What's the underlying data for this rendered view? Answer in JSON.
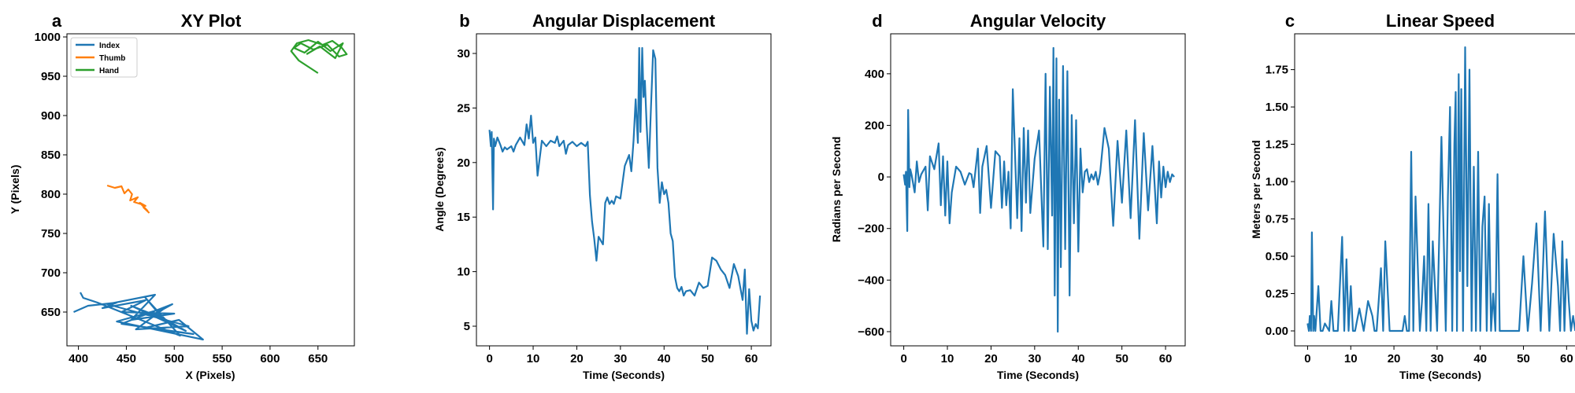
{
  "figure": {
    "panels": [
      {
        "letter": "a",
        "title": "XY Plot",
        "xlabel": "X (Pixels)",
        "ylabel": "Y (Pixels)",
        "xlim": [
          388,
          688
        ],
        "ylim": [
          607,
          1004
        ],
        "xticks": [
          400,
          450,
          500,
          550,
          600,
          650
        ],
        "yticks": [
          650,
          700,
          750,
          800,
          850,
          900,
          950,
          1000
        ],
        "tick_labels_x": [
          "400",
          "450",
          "500",
          "550",
          "600",
          "650"
        ],
        "tick_labels_y": [
          "650",
          "700",
          "750",
          "800",
          "850",
          "900",
          "950",
          "1000"
        ],
        "legend": {
          "placement": "upper-left",
          "entries": [
            "Index",
            "Thumb",
            "Hand"
          ]
        }
      },
      {
        "letter": "b",
        "title": "Angular Displacement",
        "xlabel": "Time (Seconds)",
        "ylabel": "Angle (Degrees)",
        "xlim": [
          -3,
          64.5
        ],
        "ylim": [
          3.2,
          31.8
        ],
        "xticks": [
          0,
          10,
          20,
          30,
          40,
          50,
          60
        ],
        "yticks": [
          5,
          10,
          15,
          20,
          25,
          30
        ],
        "tick_labels_x": [
          "0",
          "10",
          "20",
          "30",
          "40",
          "50",
          "60"
        ],
        "tick_labels_y": [
          "5",
          "10",
          "15",
          "20",
          "25",
          "30"
        ]
      },
      {
        "letter": "d",
        "title": "Angular Velocity",
        "xlabel": "Time (Seconds)",
        "ylabel": "Radians per Second",
        "xlim": [
          -3,
          64.5
        ],
        "ylim": [
          -655,
          555
        ],
        "xticks": [
          0,
          10,
          20,
          30,
          40,
          50,
          60
        ],
        "yticks": [
          -600,
          -400,
          -200,
          0,
          200,
          400
        ],
        "tick_labels_x": [
          "0",
          "10",
          "20",
          "30",
          "40",
          "50",
          "60"
        ],
        "tick_labels_y": [
          "−600",
          "−400",
          "−200",
          "0",
          "200",
          "400"
        ]
      },
      {
        "letter": "c",
        "title": "Linear Speed",
        "xlabel": "Time (Seconds)",
        "ylabel": "Meters per Second",
        "xlim": [
          -3,
          64.5
        ],
        "ylim": [
          -0.1,
          1.99
        ],
        "xticks": [
          0,
          10,
          20,
          30,
          40,
          50,
          60
        ],
        "yticks": [
          0.0,
          0.25,
          0.5,
          0.75,
          1.0,
          1.25,
          1.5,
          1.75
        ],
        "tick_labels_x": [
          "0",
          "10",
          "20",
          "30",
          "40",
          "50",
          "60"
        ],
        "tick_labels_y": [
          "0.00",
          "0.25",
          "0.50",
          "0.75",
          "1.00",
          "1.25",
          "1.50",
          "1.75"
        ]
      }
    ]
  },
  "chart_data": [
    {
      "type": "line",
      "panel": "a",
      "title": "XY Plot",
      "xlabel": "X (Pixels)",
      "ylabel": "Y (Pixels)",
      "xlim": [
        388,
        688
      ],
      "ylim": [
        607,
        1004
      ],
      "grid": false,
      "legend": "top-left",
      "series": [
        {
          "name": "Index",
          "color": "#1f77b4",
          "x": [
            395,
            410,
            440,
            425,
            470,
            445,
            500,
            455,
            480,
            430,
            515,
            460,
            490,
            440,
            530,
            505,
            470,
            520,
            445,
            498,
            480,
            512,
            455,
            488,
            470,
            506,
            420,
            405,
            402
          ],
          "y": [
            650,
            658,
            662,
            655,
            665,
            650,
            648,
            640,
            672,
            660,
            632,
            628,
            655,
            638,
            615,
            640,
            630,
            622,
            635,
            660,
            648,
            626,
            658,
            642,
            668,
            620,
            662,
            668,
            675
          ]
        },
        {
          "name": "Thumb",
          "color": "#ff7f0e",
          "x": [
            430,
            438,
            445,
            448,
            452,
            456,
            454,
            462,
            458,
            466,
            470,
            464,
            472,
            468,
            474
          ],
          "y": [
            811,
            808,
            810,
            801,
            806,
            800,
            792,
            796,
            790,
            787,
            785,
            789,
            779,
            783,
            776
          ]
        },
        {
          "name": "Hand",
          "color": "#2ca02c",
          "x": [
            650,
            640,
            630,
            622,
            628,
            640,
            655,
            665,
            675,
            680,
            672,
            660,
            645,
            632,
            625,
            636,
            650,
            663,
            676,
            668,
            652,
            638
          ],
          "y": [
            954,
            962,
            970,
            982,
            992,
            996,
            990,
            995,
            986,
            978,
            975,
            990,
            984,
            992,
            986,
            980,
            994,
            982,
            992,
            973,
            988,
            978
          ]
        }
      ]
    },
    {
      "type": "line",
      "panel": "b",
      "title": "Angular Displacement",
      "xlabel": "Time (Seconds)",
      "ylabel": "Angle (Degrees)",
      "xlim": [
        -3,
        64.5
      ],
      "ylim": [
        3.2,
        31.8
      ],
      "grid": false,
      "series": [
        {
          "color": "#1f77b4",
          "x": [
            0,
            0.3,
            0.5,
            0.8,
            1.0,
            1.3,
            1.5,
            1.8,
            2.5,
            3,
            3.5,
            4,
            5,
            5.5,
            6,
            7,
            8,
            8.5,
            9,
            9.5,
            10,
            10.5,
            11,
            12,
            13,
            14,
            15,
            15.5,
            16,
            17,
            17.5,
            18,
            19,
            20,
            21,
            22,
            22.5,
            23,
            23.5,
            24,
            24.5,
            25,
            26,
            26.5,
            27,
            27.5,
            28,
            28.5,
            29,
            30,
            31,
            32,
            32.5,
            33,
            33.5,
            34,
            34.3,
            34.6,
            35,
            35.3,
            35.6,
            36,
            36.5,
            37,
            37.5,
            38,
            38.5,
            39,
            39.5,
            40,
            40.5,
            41,
            41.5,
            42,
            42.5,
            43,
            43.5,
            44,
            44.5,
            45,
            46,
            47,
            48,
            49,
            50,
            51,
            52,
            53,
            54,
            55,
            56,
            57,
            58,
            58.5,
            59,
            59.5,
            60,
            60.5,
            61,
            61.5,
            62
          ],
          "y": [
            23,
            21.5,
            22.8,
            15.7,
            22.2,
            21.5,
            21.8,
            22.3,
            21.6,
            21,
            21.4,
            21.2,
            21.5,
            21,
            21.6,
            22.3,
            21.6,
            23.5,
            22.2,
            24.3,
            21.8,
            22.3,
            18.8,
            22,
            21.5,
            22,
            21.8,
            22.4,
            21.5,
            22,
            20.8,
            21.6,
            21.9,
            21.5,
            21.8,
            21.5,
            21.9,
            17,
            14.6,
            13,
            11,
            13.2,
            12.5,
            16.3,
            16.8,
            16.2,
            16.5,
            16.2,
            16.9,
            16.7,
            19.7,
            20.7,
            19.2,
            22,
            25.8,
            21.8,
            30.5,
            22.8,
            30.5,
            26,
            27.5,
            23.5,
            19.5,
            25,
            30.3,
            29.5,
            19.5,
            16.3,
            18.2,
            17.1,
            17.5,
            16.3,
            13.5,
            12.8,
            9.5,
            8.5,
            8.2,
            8.6,
            7.8,
            8.2,
            8.3,
            7.8,
            9,
            8.5,
            8.7,
            11.3,
            11,
            10.2,
            9.7,
            8.5,
            10.7,
            9.6,
            7.4,
            10.2,
            4.3,
            8.4,
            5.5,
            4.6,
            5.2,
            4.8,
            7.8
          ]
        }
      ]
    },
    {
      "type": "line",
      "panel": "d",
      "title": "Angular Velocity",
      "xlabel": "Time (Seconds)",
      "ylabel": "Radians per Second",
      "xlim": [
        -3,
        64.5
      ],
      "ylim": [
        -655,
        555
      ],
      "grid": false,
      "series": [
        {
          "color": "#1f77b4",
          "x": [
            0,
            0.3,
            0.5,
            0.8,
            1.0,
            1.3,
            1.5,
            1.8,
            2.5,
            3,
            3.5,
            4,
            5,
            5.5,
            6,
            7,
            8,
            8.5,
            9,
            9.5,
            10,
            10.5,
            11,
            12,
            13,
            14,
            15,
            15.5,
            16,
            17,
            17.5,
            18,
            19,
            20,
            21,
            22,
            22.5,
            23,
            23.5,
            24,
            24.5,
            25,
            26,
            26.5,
            27,
            27.5,
            28,
            28.5,
            29,
            30,
            31,
            32,
            32.5,
            33,
            33.5,
            34,
            34.3,
            34.6,
            35,
            35.3,
            35.6,
            36,
            36.5,
            37,
            37.5,
            38,
            38.5,
            39,
            39.5,
            40,
            40.5,
            41,
            41.5,
            42,
            42.5,
            43,
            43.5,
            44,
            44.5,
            45,
            46,
            47,
            48,
            49,
            50,
            51,
            52,
            53,
            54,
            55,
            56,
            57,
            58,
            58.5,
            59,
            59.5,
            60,
            60.5,
            61,
            61.5,
            62
          ],
          "y": [
            10,
            -30,
            20,
            -210,
            260,
            -40,
            30,
            8,
            -60,
            60,
            -20,
            10,
            40,
            -130,
            80,
            30,
            130,
            -110,
            80,
            -150,
            60,
            -180,
            -60,
            40,
            20,
            -30,
            15,
            10,
            -40,
            110,
            -140,
            40,
            120,
            -120,
            100,
            80,
            -120,
            60,
            -110,
            20,
            -200,
            340,
            -160,
            150,
            -210,
            190,
            -100,
            180,
            -140,
            70,
            180,
            -270,
            400,
            -280,
            350,
            -150,
            500,
            -460,
            460,
            -600,
            300,
            -350,
            430,
            -280,
            410,
            -460,
            240,
            -180,
            220,
            -290,
            110,
            -60,
            20,
            30,
            -20,
            10,
            -10,
            20,
            -30,
            15,
            190,
            110,
            -190,
            140,
            -100,
            180,
            -160,
            220,
            -240,
            170,
            -130,
            120,
            -180,
            60,
            -80,
            40,
            -40,
            20,
            -20,
            10,
            0
          ]
        }
      ]
    },
    {
      "type": "line",
      "panel": "c",
      "title": "Linear Speed",
      "xlabel": "Time (Seconds)",
      "ylabel": "Meters per Second",
      "xlim": [
        -3,
        64.5
      ],
      "ylim": [
        -0.1,
        1.99
      ],
      "grid": false,
      "series": [
        {
          "color": "#1f77b4",
          "x": [
            0,
            0.3,
            0.5,
            0.8,
            1.0,
            1.3,
            1.5,
            1.8,
            2.5,
            3,
            3.5,
            4,
            5,
            5.5,
            6,
            7,
            8,
            8.5,
            9,
            9.5,
            10,
            10.5,
            11,
            12,
            13,
            14,
            15,
            15.5,
            16,
            17,
            17.5,
            18,
            19,
            20,
            21,
            22,
            22.5,
            23,
            23.5,
            24,
            24.5,
            25,
            26,
            26.5,
            27,
            27.5,
            28,
            28.5,
            29,
            30,
            31,
            32,
            32.5,
            33,
            33.5,
            34,
            34.3,
            34.6,
            35,
            35.3,
            35.6,
            36,
            36.5,
            37,
            37.5,
            38,
            38.5,
            39,
            39.5,
            40,
            40.5,
            41,
            41.5,
            42,
            42.5,
            43,
            43.5,
            44,
            44.5,
            45,
            46,
            47,
            48,
            49,
            50,
            51,
            52,
            53,
            54,
            55,
            56,
            57,
            58,
            58.5,
            59,
            59.5,
            60,
            60.5,
            61,
            61.5,
            62
          ],
          "y": [
            0.05,
            0,
            0.1,
            0,
            0.66,
            0,
            0.1,
            0,
            0.3,
            0,
            0,
            0.05,
            0,
            0.2,
            0,
            0,
            0.63,
            0,
            0.48,
            0,
            0.3,
            0,
            0,
            0.15,
            0,
            0.2,
            0.1,
            0,
            0,
            0.42,
            0,
            0.6,
            0,
            0,
            0,
            0,
            0.1,
            0,
            0,
            1.2,
            0,
            0.9,
            0,
            0.2,
            0.5,
            0,
            0.85,
            0,
            0.6,
            0,
            1.3,
            0,
            0.9,
            1.5,
            0,
            1.25,
            1.6,
            0,
            1.72,
            0.4,
            1.62,
            0,
            1.9,
            0.3,
            1.75,
            0,
            1.1,
            0,
            1.2,
            0,
            0.7,
            0.9,
            0,
            0.85,
            0,
            0.25,
            0,
            1.05,
            0,
            0,
            0,
            0,
            0,
            0,
            0.5,
            0,
            0.32,
            0.72,
            0,
            0.8,
            0,
            0.65,
            0.3,
            0,
            0.6,
            0,
            0.48,
            0.2,
            0,
            0.1,
            0
          ]
        }
      ]
    }
  ]
}
